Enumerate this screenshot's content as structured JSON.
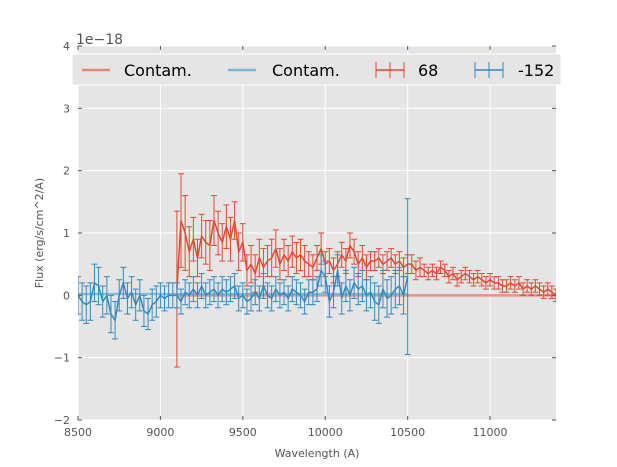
{
  "chart_data": {
    "type": "line",
    "title": "",
    "xlabel": "Wavelength (A)",
    "ylabel": "Flux (erg/s/cm^2/A)",
    "y_offset_label": "1e−18",
    "xlim": [
      8500,
      11400
    ],
    "ylim": [
      -2,
      4
    ],
    "xticks": [
      8500,
      9000,
      9500,
      10000,
      10500,
      11000
    ],
    "xtick_labels": [
      "8500",
      "9000",
      "9500",
      "10000",
      "10500",
      "11000"
    ],
    "yticks": [
      -2,
      -1,
      0,
      1,
      2,
      3,
      4
    ],
    "ytick_labels": [
      "−2",
      "−1",
      "0",
      "1",
      "2",
      "3",
      "4"
    ],
    "grid": true,
    "legend_position": "top",
    "legend": [
      {
        "label": "Contam.",
        "kind": "line",
        "color": "#e8857a"
      },
      {
        "label": "Contam.",
        "kind": "line",
        "color": "#7ab4d8"
      },
      {
        "label": "68",
        "kind": "errorbar",
        "color": "#e24a33"
      },
      {
        "label": "-152",
        "kind": "errorbar",
        "color": "#348abd"
      }
    ],
    "contam_series": [
      {
        "name": "Contam.",
        "color": "#e8857a",
        "x": [
          9100,
          11400
        ],
        "y": [
          0.0,
          0.0
        ]
      },
      {
        "name": "Contam.",
        "color": "#7ab4d8",
        "x": [
          8500,
          10500
        ],
        "y": [
          0.02,
          0.02
        ]
      }
    ],
    "series": [
      {
        "name": "68",
        "color": "#e24a33",
        "x": [
          9100,
          9125,
          9150,
          9175,
          9200,
          9225,
          9250,
          9275,
          9300,
          9325,
          9350,
          9375,
          9400,
          9425,
          9450,
          9475,
          9500,
          9525,
          9550,
          9575,
          9600,
          9625,
          9650,
          9675,
          9700,
          9725,
          9750,
          9775,
          9800,
          9825,
          9850,
          9875,
          9900,
          9925,
          9950,
          9975,
          10000,
          10025,
          10050,
          10075,
          10100,
          10125,
          10150,
          10175,
          10200,
          10225,
          10250,
          10275,
          10300,
          10325,
          10350,
          10375,
          10400,
          10425,
          10450,
          10475,
          10500,
          10525,
          10550,
          10575,
          10600,
          10625,
          10650,
          10675,
          10700,
          10725,
          10750,
          10775,
          10800,
          10825,
          10850,
          10875,
          10900,
          10925,
          10950,
          10975,
          11000,
          11025,
          11050,
          11075,
          11100,
          11125,
          11150,
          11175,
          11200,
          11225,
          11250,
          11275,
          11300,
          11325,
          11350,
          11375,
          11400
        ],
        "y": [
          0.1,
          1.2,
          1.0,
          0.7,
          0.9,
          0.6,
          0.95,
          0.85,
          0.8,
          1.2,
          1.0,
          0.85,
          1.1,
          0.9,
          1.2,
          0.7,
          0.85,
          0.4,
          0.5,
          0.35,
          0.6,
          0.45,
          0.55,
          0.6,
          0.75,
          0.5,
          0.65,
          0.55,
          0.7,
          0.6,
          0.65,
          0.55,
          0.5,
          0.45,
          0.6,
          0.75,
          0.5,
          0.55,
          0.4,
          0.5,
          0.65,
          0.55,
          0.8,
          0.7,
          0.5,
          0.6,
          0.45,
          0.55,
          0.55,
          0.6,
          0.5,
          0.55,
          0.6,
          0.5,
          0.55,
          0.45,
          0.5,
          0.5,
          0.4,
          0.45,
          0.4,
          0.35,
          0.4,
          0.35,
          0.45,
          0.4,
          0.3,
          0.35,
          0.25,
          0.3,
          0.35,
          0.3,
          0.25,
          0.3,
          0.25,
          0.2,
          0.25,
          0.2,
          0.2,
          0.15,
          0.15,
          0.2,
          0.15,
          0.2,
          0.1,
          0.15,
          0.1,
          0.15,
          0.1,
          0.05,
          0.1,
          0.05,
          0.0
        ],
        "err": [
          1.25,
          0.75,
          0.6,
          0.4,
          0.35,
          0.3,
          0.35,
          0.35,
          0.4,
          0.4,
          0.35,
          0.3,
          0.35,
          0.35,
          0.3,
          0.3,
          0.3,
          0.25,
          0.3,
          0.3,
          0.3,
          0.3,
          0.25,
          0.3,
          0.3,
          0.25,
          0.25,
          0.25,
          0.25,
          0.25,
          0.25,
          0.25,
          0.2,
          0.2,
          0.2,
          0.25,
          0.2,
          0.2,
          0.2,
          0.2,
          0.2,
          0.2,
          0.2,
          0.2,
          0.2,
          0.2,
          0.2,
          0.15,
          0.15,
          0.15,
          0.15,
          0.15,
          0.15,
          0.15,
          0.15,
          0.15,
          0.15,
          0.15,
          0.15,
          0.15,
          0.1,
          0.1,
          0.1,
          0.1,
          0.1,
          0.1,
          0.1,
          0.1,
          0.1,
          0.1,
          0.1,
          0.1,
          0.1,
          0.1,
          0.1,
          0.1,
          0.1,
          0.1,
          0.1,
          0.1,
          0.1,
          0.1,
          0.1,
          0.1,
          0.1,
          0.1,
          0.1,
          0.1,
          0.1,
          0.1,
          0.1,
          0.1,
          0.1
        ]
      },
      {
        "name": "-152",
        "color": "#348abd",
        "x": [
          8500,
          8525,
          8550,
          8575,
          8600,
          8625,
          8650,
          8675,
          8700,
          8725,
          8750,
          8775,
          8800,
          8825,
          8850,
          8875,
          8900,
          8925,
          8950,
          8975,
          9000,
          9025,
          9050,
          9075,
          9100,
          9125,
          9150,
          9175,
          9200,
          9225,
          9250,
          9275,
          9300,
          9325,
          9350,
          9375,
          9400,
          9425,
          9450,
          9475,
          9500,
          9525,
          9550,
          9575,
          9600,
          9625,
          9650,
          9675,
          9700,
          9725,
          9750,
          9775,
          9800,
          9825,
          9850,
          9875,
          9900,
          9925,
          9950,
          9975,
          10000,
          10025,
          10050,
          10075,
          10100,
          10125,
          10150,
          10175,
          10200,
          10225,
          10250,
          10275,
          10300,
          10325,
          10350,
          10375,
          10400,
          10425,
          10450,
          10475,
          10500
        ],
        "y": [
          0.0,
          -0.1,
          -0.15,
          -0.1,
          0.2,
          0.15,
          -0.1,
          0.0,
          -0.3,
          -0.4,
          0.0,
          0.2,
          -0.05,
          0.05,
          -0.15,
          0.0,
          -0.25,
          -0.3,
          -0.15,
          -0.1,
          0.0,
          -0.05,
          0.0,
          0.0,
          0.0,
          -0.1,
          0.05,
          0.0,
          0.1,
          0.0,
          0.15,
          0.0,
          0.05,
          0.1,
          0.0,
          0.1,
          0.05,
          0.1,
          0.15,
          -0.05,
          0.0,
          -0.1,
          -0.05,
          0.05,
          -0.05,
          0.15,
          0.0,
          -0.05,
          0.1,
          0.0,
          0.05,
          -0.05,
          0.1,
          0.05,
          0.0,
          -0.1,
          0.05,
          0.05,
          0.1,
          0.4,
          0.3,
          -0.1,
          0.05,
          0.4,
          -0.05,
          0.15,
          0.0,
          0.2,
          0.1,
          0.15,
          0.0,
          0.05,
          -0.1,
          -0.15,
          0.1,
          -0.05,
          0.0,
          0.1,
          0.15,
          0.0,
          0.3
        ],
        "err": [
          0.3,
          0.3,
          0.3,
          0.3,
          0.3,
          0.3,
          0.25,
          0.3,
          0.3,
          0.3,
          0.25,
          0.25,
          0.25,
          0.25,
          0.25,
          0.25,
          0.25,
          0.25,
          0.25,
          0.25,
          0.2,
          0.2,
          0.2,
          0.2,
          0.2,
          0.2,
          0.2,
          0.2,
          0.2,
          0.2,
          0.2,
          0.2,
          0.2,
          0.2,
          0.2,
          0.2,
          0.2,
          0.2,
          0.2,
          0.2,
          0.2,
          0.2,
          0.2,
          0.2,
          0.2,
          0.2,
          0.2,
          0.2,
          0.2,
          0.2,
          0.2,
          0.2,
          0.2,
          0.2,
          0.2,
          0.2,
          0.2,
          0.2,
          0.2,
          0.25,
          0.25,
          0.25,
          0.25,
          0.25,
          0.25,
          0.25,
          0.25,
          0.25,
          0.25,
          0.25,
          0.25,
          0.25,
          0.3,
          0.3,
          0.3,
          0.3,
          0.3,
          0.3,
          0.3,
          0.3,
          1.25
        ]
      }
    ]
  }
}
